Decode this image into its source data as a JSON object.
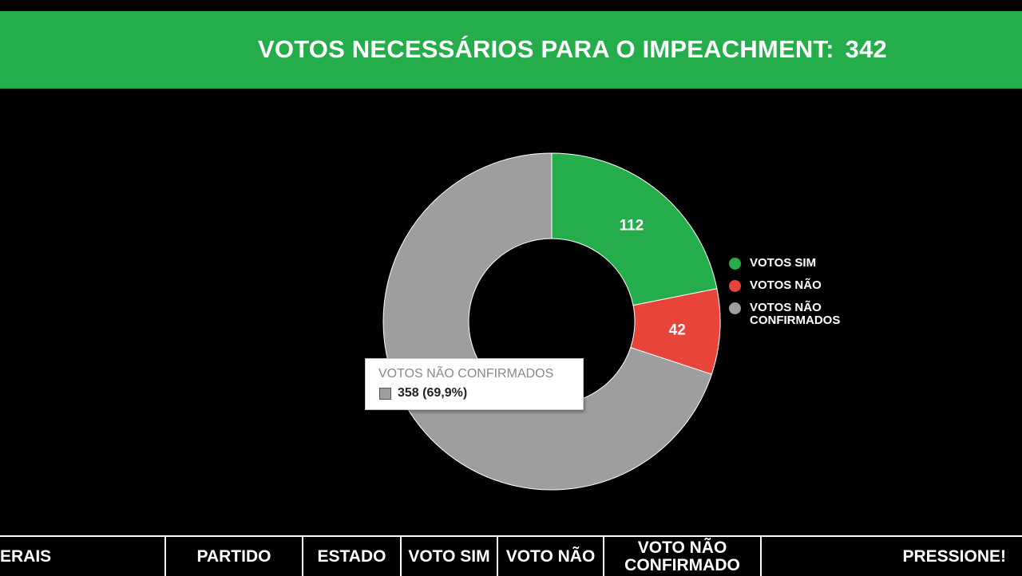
{
  "header": {
    "title": "VOTOS NECESSÁRIOS PARA O IMPEACHMENT:",
    "votes_needed": "342"
  },
  "chart_data": {
    "type": "pie",
    "donut": true,
    "slices": [
      {
        "name": "VOTOS SIM",
        "value": 112,
        "color": "#26ad4b",
        "label": "112"
      },
      {
        "name": "VOTOS NÃO",
        "value": 42,
        "color": "#e8443a",
        "label": "42"
      },
      {
        "name": "VOTOS NÃO CONFIRMADOS",
        "value": 358,
        "color": "#9e9e9e",
        "label": ""
      }
    ],
    "legend_placement": "right"
  },
  "legend": {
    "items": [
      {
        "label": "VOTOS SIM",
        "color": "#26ad4b"
      },
      {
        "label": "VOTOS NÃO",
        "color": "#e8443a"
      },
      {
        "label": "VOTOS NÃO CONFIRMADOS",
        "color": "#9e9e9e"
      }
    ]
  },
  "tooltip": {
    "title": "VOTOS NÃO CONFIRMADOS",
    "value": "358 (69,9%)"
  },
  "table": {
    "columns": [
      "ERAIS",
      "PARTIDO",
      "ESTADO",
      "VOTO SIM",
      "VOTO NÃO",
      "VOTO NÃO CONFIRMADO",
      "PRESSIONE!"
    ]
  }
}
